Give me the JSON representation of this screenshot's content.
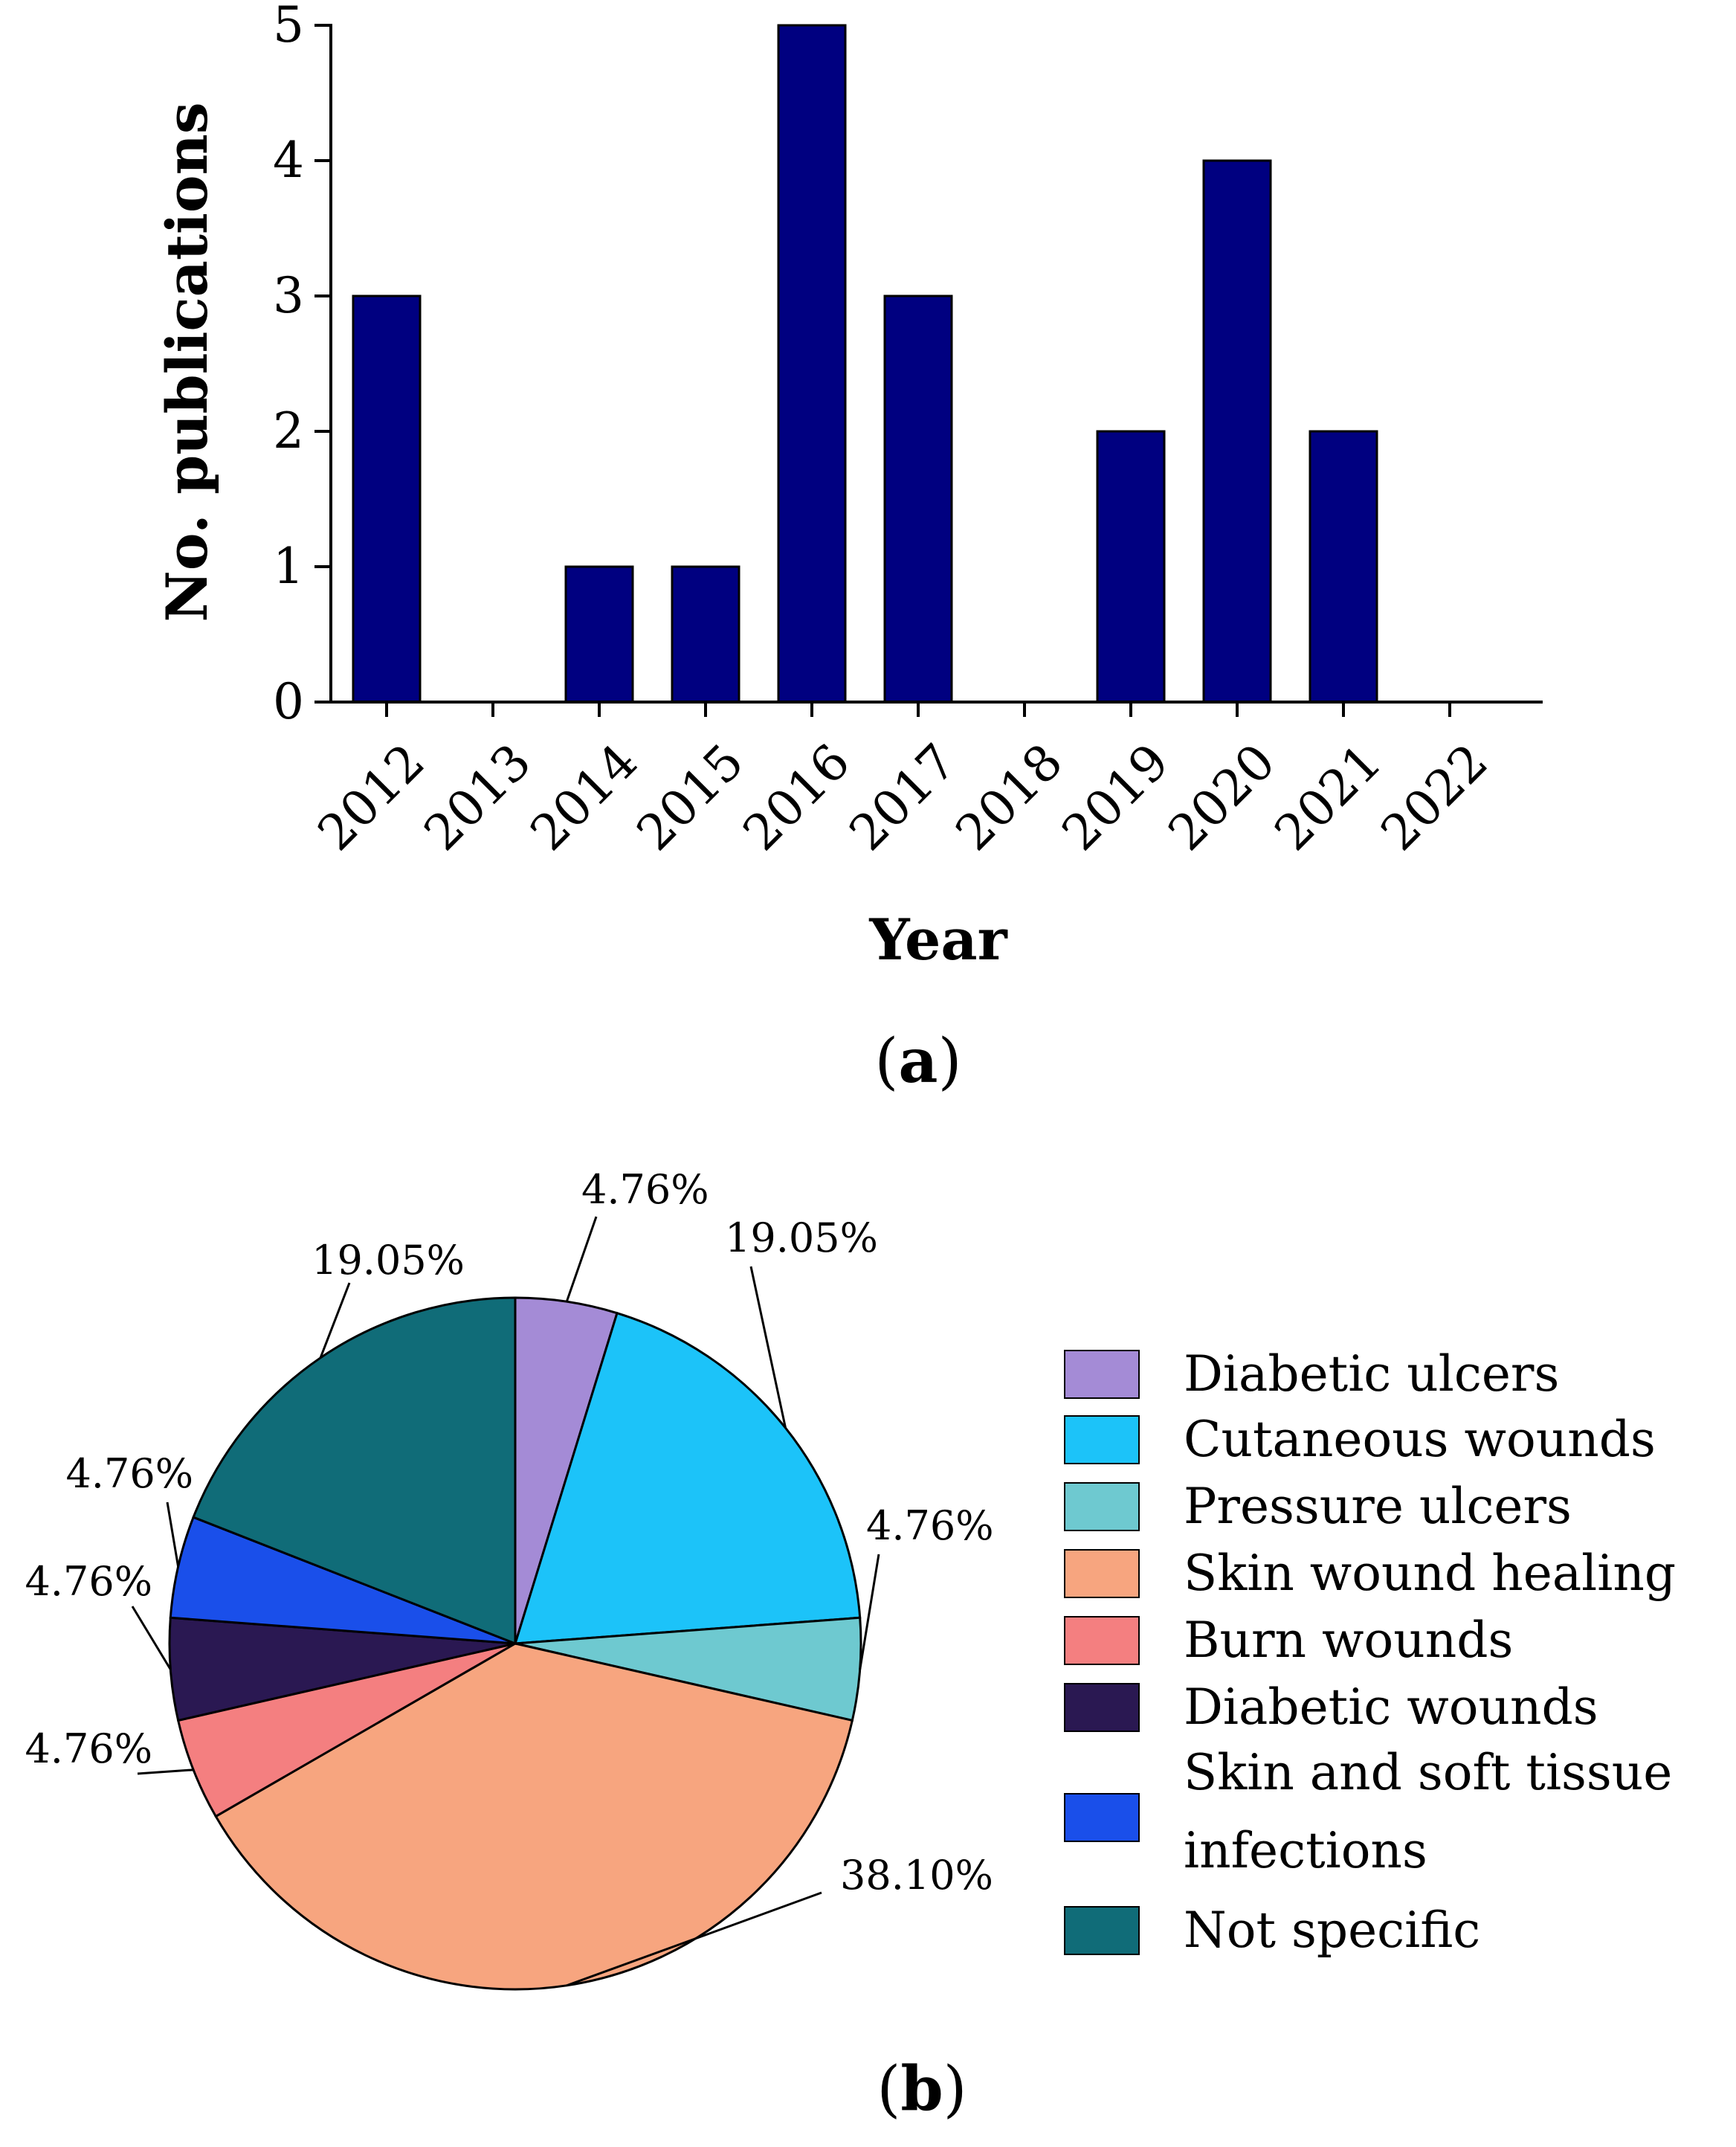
{
  "figure": {
    "panel_a_label": "a",
    "panel_b_label": "b"
  },
  "chart_data": [
    {
      "type": "bar",
      "categories": [
        "2012",
        "2013",
        "2014",
        "2015",
        "2016",
        "2017",
        "2018",
        "2019",
        "2020",
        "2021",
        "2022"
      ],
      "values": [
        3,
        0,
        1,
        1,
        5,
        3,
        0,
        2,
        4,
        2,
        0
      ],
      "title": "",
      "xlabel": "Year",
      "ylabel": "No. publications",
      "ylim": [
        0,
        5
      ],
      "yticks": [
        "0",
        "1",
        "2",
        "3",
        "4",
        "5"
      ],
      "bar_color": "#000080",
      "grid": false
    },
    {
      "type": "pie",
      "start": "top, clockwise",
      "legend_position": "right",
      "slices": [
        {
          "label": "Diabetic ulcers",
          "value": 4.76,
          "display": "4.76%",
          "color": "#A48BD6"
        },
        {
          "label": "Cutaneous wounds",
          "value": 19.05,
          "display": "19.05%",
          "color": "#1CC3F9"
        },
        {
          "label": "Pressure ulcers",
          "value": 4.76,
          "display": "4.76%",
          "color": "#6EC9D0"
        },
        {
          "label": "Skin wound healing",
          "value": 38.1,
          "display": "38.10%",
          "color": "#F7A57F"
        },
        {
          "label": "Burn wounds",
          "value": 4.76,
          "display": "4.76%",
          "color": "#F47F80"
        },
        {
          "label": "Diabetic wounds",
          "value": 4.76,
          "display": "4.76%",
          "color": "#2A1852"
        },
        {
          "label": "Skin and soft tissue infections",
          "legend_lines": [
            "Skin and soft tissue",
            "infections"
          ],
          "value": 4.76,
          "display": "4.76%",
          "color": "#1A4FEA"
        },
        {
          "label": "Not specific",
          "value": 19.05,
          "display": "19.05%",
          "color": "#106C78"
        }
      ]
    }
  ]
}
